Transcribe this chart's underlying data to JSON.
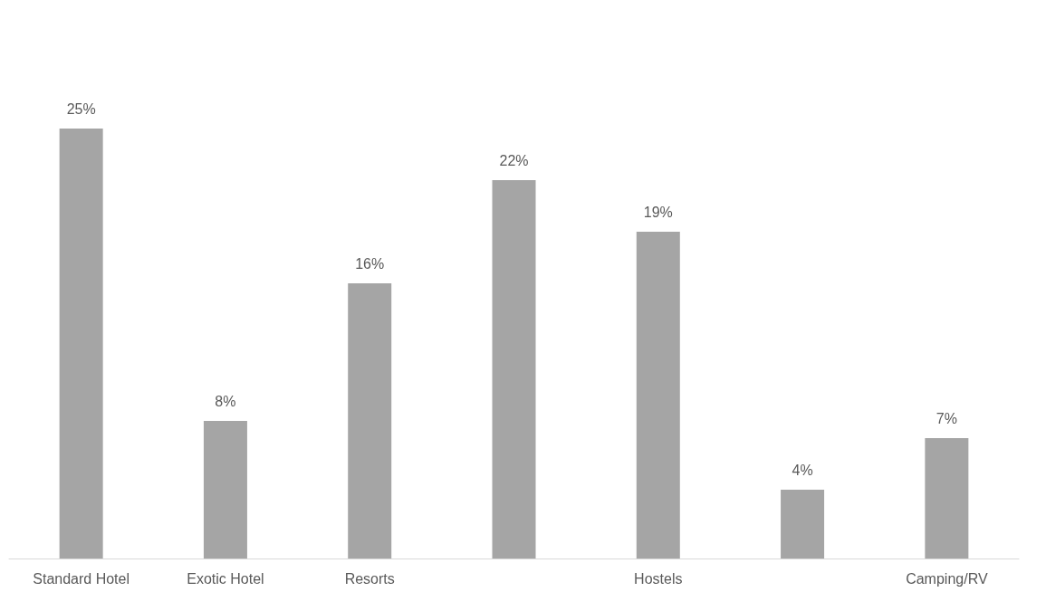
{
  "chart_data": {
    "type": "bar",
    "categories": [
      "Standard Hotel",
      "Exotic Hotel",
      "Resorts",
      null,
      "Hostels",
      null,
      "Camping/RV"
    ],
    "values": [
      25,
      8,
      16,
      22,
      19,
      4,
      7
    ],
    "value_labels": [
      "25%",
      "8%",
      "16%",
      "22%",
      "19%",
      "4%",
      "7%"
    ],
    "color": "#a5a5a5"
  }
}
